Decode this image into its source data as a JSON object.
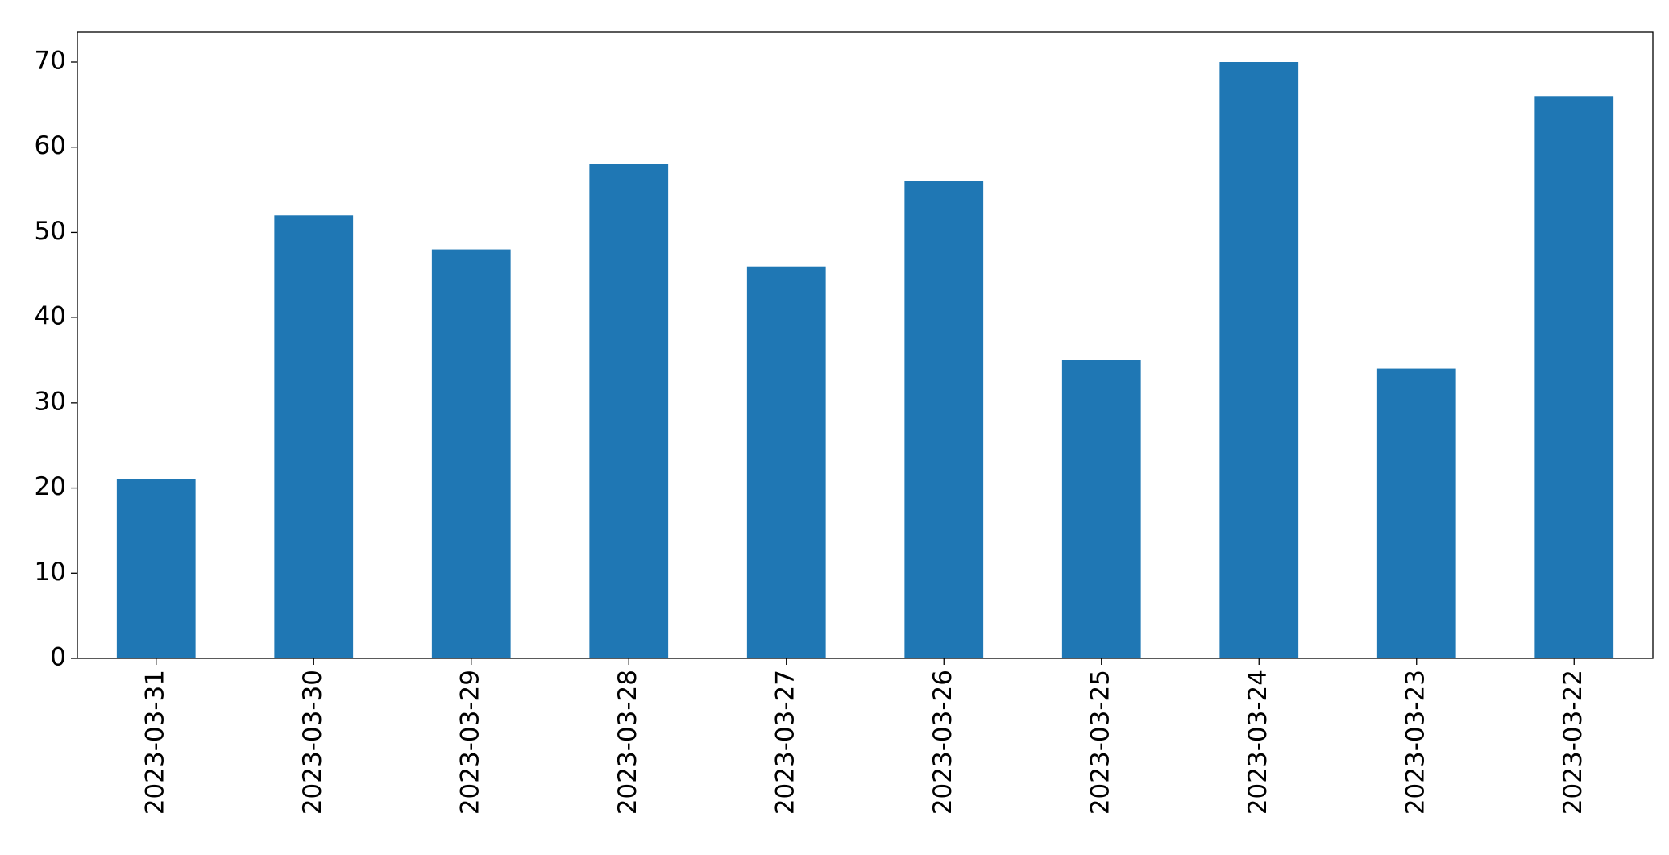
{
  "chart_data": {
    "type": "bar",
    "categories": [
      "2023-03-31",
      "2023-03-30",
      "2023-03-29",
      "2023-03-28",
      "2023-03-27",
      "2023-03-26",
      "2023-03-25",
      "2023-03-24",
      "2023-03-23",
      "2023-03-22"
    ],
    "values": [
      21,
      52,
      48,
      58,
      46,
      56,
      35,
      70,
      34,
      66
    ],
    "color": "#1f77b4",
    "ylim": [
      0,
      73.5
    ],
    "yticks": [
      0,
      10,
      20,
      30,
      40,
      50,
      60,
      70
    ],
    "grid": false
  }
}
